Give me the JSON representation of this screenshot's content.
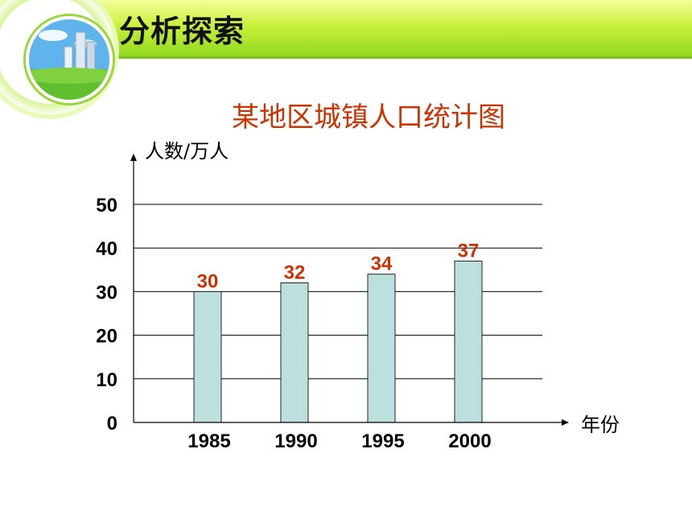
{
  "header": {
    "title": "分析探索"
  },
  "chart_data": {
    "type": "bar",
    "title": "某地区城镇人口统计图",
    "ylabel": "人数/万人",
    "xlabel": "年份",
    "categories": [
      "1985",
      "1990",
      "1995",
      "2000"
    ],
    "values": [
      30,
      32,
      34,
      37
    ],
    "data_labels": [
      "30",
      "32",
      "34",
      "37"
    ],
    "ylim": [
      0,
      50
    ],
    "yticks": [
      "0",
      "10",
      "20",
      "30",
      "40",
      "50"
    ],
    "grid": true,
    "colors": {
      "bar_fill": "#bde0df",
      "bar_stroke": "#222222",
      "data_label": "#cc3300",
      "title": "#cc3300",
      "grid": "#000000"
    }
  }
}
